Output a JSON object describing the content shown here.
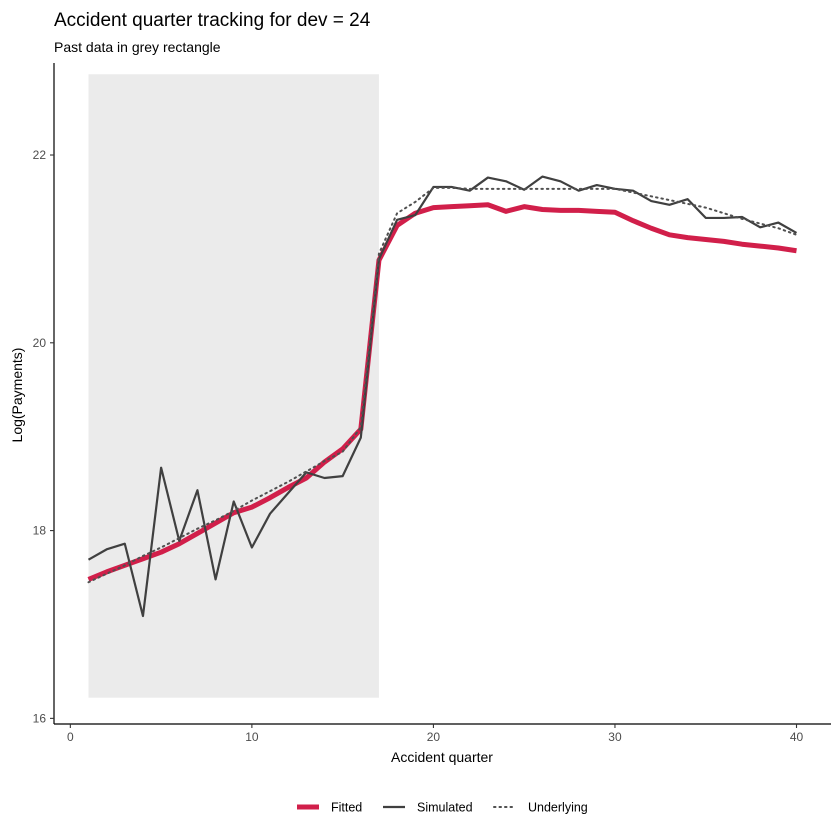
{
  "chart_data": {
    "type": "line",
    "title": "Accident quarter tracking for dev = 24",
    "subtitle": "Past data in grey rectangle",
    "xlabel": "Accident quarter",
    "ylabel": "Log(Payments)",
    "xlim": [
      -0.9,
      41.9
    ],
    "ylim": [
      15.94,
      22.98
    ],
    "x_ticks": [
      0,
      10,
      20,
      30,
      40
    ],
    "y_ticks": [
      16,
      18,
      20,
      22
    ],
    "past_data_region": {
      "x": [
        1,
        17
      ],
      "y": [
        16.22,
        22.86
      ],
      "color": "#ebebeb"
    },
    "legend_position": "bottom",
    "series": [
      {
        "name": "Fitted",
        "color": "#d11f4a",
        "style": "solid-thick",
        "x": [
          1,
          2,
          3,
          4,
          5,
          6,
          7,
          8,
          9,
          10,
          11,
          12,
          13,
          14,
          15,
          16,
          17,
          18,
          19,
          20,
          21,
          22,
          23,
          24,
          25,
          26,
          27,
          28,
          29,
          30,
          31,
          32,
          33,
          34,
          35,
          36,
          37,
          38,
          39,
          40
        ],
        "values": [
          17.48,
          17.56,
          17.63,
          17.7,
          17.77,
          17.86,
          17.97,
          18.08,
          18.19,
          18.25,
          18.35,
          18.46,
          18.56,
          18.73,
          18.87,
          19.08,
          20.88,
          21.25,
          21.38,
          21.44,
          21.45,
          21.46,
          21.47,
          21.4,
          21.45,
          21.42,
          21.41,
          21.41,
          21.4,
          21.39,
          21.3,
          21.22,
          21.15,
          21.12,
          21.1,
          21.08,
          21.05,
          21.03,
          21.01,
          20.98
        ]
      },
      {
        "name": "Simulated",
        "color": "#404040",
        "style": "solid",
        "x": [
          1,
          2,
          3,
          4,
          5,
          6,
          7,
          8,
          9,
          10,
          11,
          12,
          13,
          14,
          15,
          16,
          17,
          18,
          19,
          20,
          21,
          22,
          23,
          24,
          25,
          26,
          27,
          28,
          29,
          30,
          31,
          32,
          33,
          34,
          35,
          36,
          37,
          38,
          39,
          40
        ],
        "values": [
          17.69,
          17.8,
          17.86,
          17.09,
          18.67,
          17.89,
          18.43,
          17.48,
          18.31,
          17.82,
          18.18,
          18.4,
          18.62,
          18.56,
          18.58,
          18.99,
          20.89,
          21.31,
          21.36,
          21.66,
          21.66,
          21.62,
          21.76,
          21.72,
          21.63,
          21.77,
          21.72,
          21.62,
          21.68,
          21.64,
          21.62,
          21.51,
          21.47,
          21.53,
          21.33,
          21.33,
          21.34,
          21.23,
          21.28,
          21.17
        ]
      },
      {
        "name": "Underlying",
        "color": "#505050",
        "style": "dotted",
        "x": [
          1,
          2,
          3,
          4,
          5,
          6,
          7,
          8,
          9,
          10,
          11,
          12,
          13,
          14,
          15,
          16,
          17,
          18,
          19,
          20,
          21,
          22,
          23,
          24,
          25,
          26,
          27,
          28,
          29,
          30,
          31,
          32,
          33,
          34,
          35,
          36,
          37,
          38,
          39,
          40
        ],
        "values": [
          17.45,
          17.54,
          17.63,
          17.73,
          17.82,
          17.92,
          18.02,
          18.11,
          18.21,
          18.32,
          18.42,
          18.52,
          18.63,
          18.74,
          18.84,
          19.1,
          20.95,
          21.38,
          21.5,
          21.65,
          21.65,
          21.64,
          21.64,
          21.64,
          21.64,
          21.64,
          21.64,
          21.64,
          21.64,
          21.64,
          21.6,
          21.56,
          21.52,
          21.48,
          21.44,
          21.38,
          21.32,
          21.27,
          21.22,
          21.15
        ]
      }
    ]
  }
}
